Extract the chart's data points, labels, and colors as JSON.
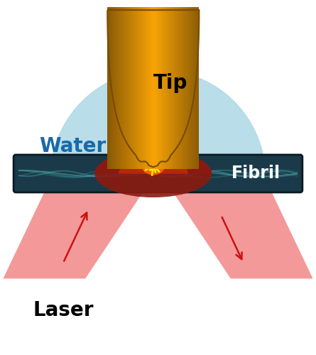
{
  "fig_width": 4.45,
  "fig_height": 5.0,
  "dpi": 100,
  "bg_color": "#ffffff",
  "water_color": "#add8e6",
  "water_alpha": 0.85,
  "fibril_bg_color": "#1a3a4a",
  "fibril_edge_color": "#0a1a22",
  "fibril_wave_colors": [
    "#3a8a8a",
    "#2a7070",
    "#4aa0a0",
    "#5aaaaa"
  ],
  "dome_color": "#8b1a10",
  "dome_inner_color": "#cc3300",
  "spark_outer_color": "#ff6600",
  "spark_inner_color": "#ffcc00",
  "spark_ray_color": "#ffee00",
  "tip_color_dark": "#b87000",
  "tip_color_mid": "#e8a020",
  "tip_color_bright": "#f5c030",
  "laser_color": "#f08080",
  "laser_alpha": 0.8,
  "arrow_color": "#cc1111",
  "label_tip": "Tip",
  "label_water": "Water",
  "label_fibril": "Fibril",
  "label_laser": "Laser",
  "font_size_large": 20,
  "font_size_fibril": 17,
  "font_size_water": 20
}
